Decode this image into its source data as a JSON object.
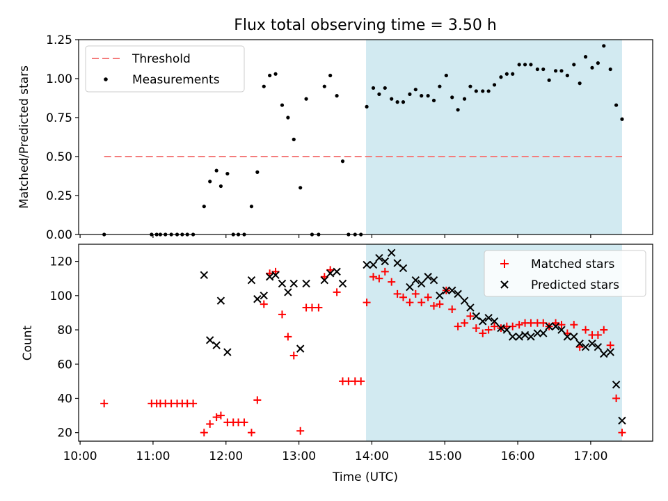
{
  "title": "Flux total observing time = 3.50 h",
  "colors": {
    "threshold": "#f47c7c",
    "measurement": "#000000",
    "matched": "#ff0000",
    "predicted": "#000000",
    "highlight": "#add8e6"
  },
  "chart_data": [
    {
      "type": "scatter",
      "ylabel": "Matched/Predicted stars",
      "xlim": [
        9.98,
        17.85
      ],
      "ylim": [
        0,
        1.25
      ],
      "yticks": [
        "0.00",
        "0.25",
        "0.50",
        "0.75",
        "1.00",
        "1.25"
      ],
      "highlight_span": [
        13.92,
        17.43
      ],
      "legend": {
        "placement": "upper-left",
        "entries": [
          {
            "label": "Threshold",
            "kind": "dashed-line"
          },
          {
            "label": "Measurements",
            "kind": "dot"
          }
        ]
      },
      "threshold": {
        "name": "Threshold",
        "y": 0.5,
        "x": [
          10.33,
          17.43
        ]
      },
      "series": [
        {
          "name": "Measurements",
          "points": [
            [
              10.33,
              0
            ],
            [
              10.98,
              0
            ],
            [
              11.05,
              0
            ],
            [
              11.1,
              0
            ],
            [
              11.17,
              0
            ],
            [
              11.25,
              0
            ],
            [
              11.33,
              0
            ],
            [
              11.4,
              0
            ],
            [
              11.47,
              0
            ],
            [
              11.55,
              0
            ],
            [
              11.7,
              0.18
            ],
            [
              11.78,
              0.34
            ],
            [
              11.87,
              0.41
            ],
            [
              11.93,
              0.31
            ],
            [
              12.02,
              0.39
            ],
            [
              12.1,
              0
            ],
            [
              12.17,
              0
            ],
            [
              12.25,
              0
            ],
            [
              12.35,
              0.18
            ],
            [
              12.43,
              0.4
            ],
            [
              12.52,
              0.95
            ],
            [
              12.6,
              1.02
            ],
            [
              12.68,
              1.03
            ],
            [
              12.77,
              0.83
            ],
            [
              12.85,
              0.75
            ],
            [
              12.93,
              0.61
            ],
            [
              13.02,
              0.3
            ],
            [
              13.1,
              0.87
            ],
            [
              13.18,
              0
            ],
            [
              13.27,
              0
            ],
            [
              13.35,
              0.95
            ],
            [
              13.43,
              1.02
            ],
            [
              13.52,
              0.89
            ],
            [
              13.6,
              0.47
            ],
            [
              13.68,
              0
            ],
            [
              13.77,
              0
            ],
            [
              13.85,
              0
            ],
            [
              13.93,
              0.82
            ],
            [
              14.02,
              0.94
            ],
            [
              14.1,
              0.9
            ],
            [
              14.18,
              0.94
            ],
            [
              14.27,
              0.87
            ],
            [
              14.35,
              0.85
            ],
            [
              14.43,
              0.85
            ],
            [
              14.52,
              0.9
            ],
            [
              14.6,
              0.93
            ],
            [
              14.68,
              0.89
            ],
            [
              14.77,
              0.89
            ],
            [
              14.85,
              0.86
            ],
            [
              14.93,
              0.95
            ],
            [
              15.02,
              1.02
            ],
            [
              15.1,
              0.88
            ],
            [
              15.18,
              0.8
            ],
            [
              15.27,
              0.87
            ],
            [
              15.35,
              0.95
            ],
            [
              15.43,
              0.92
            ],
            [
              15.52,
              0.92
            ],
            [
              15.6,
              0.92
            ],
            [
              15.68,
              0.96
            ],
            [
              15.77,
              1.01
            ],
            [
              15.85,
              1.03
            ],
            [
              15.93,
              1.03
            ],
            [
              16.02,
              1.09
            ],
            [
              16.1,
              1.09
            ],
            [
              16.18,
              1.09
            ],
            [
              16.27,
              1.06
            ],
            [
              16.35,
              1.06
            ],
            [
              16.43,
              0.99
            ],
            [
              16.52,
              1.05
            ],
            [
              16.6,
              1.05
            ],
            [
              16.68,
              1.02
            ],
            [
              16.77,
              1.09
            ],
            [
              16.85,
              0.97
            ],
            [
              16.93,
              1.14
            ],
            [
              17.02,
              1.07
            ],
            [
              17.1,
              1.1
            ],
            [
              17.18,
              1.21
            ],
            [
              17.27,
              1.06
            ],
            [
              17.35,
              0.83
            ],
            [
              17.43,
              0.74
            ]
          ]
        }
      ]
    },
    {
      "type": "scatter",
      "xlabel": "Time (UTC)",
      "ylabel": "Count",
      "xlim": [
        9.98,
        17.85
      ],
      "ylim": [
        15,
        130
      ],
      "xticks": [
        "10:00",
        "11:00",
        "12:00",
        "13:00",
        "14:00",
        "15:00",
        "16:00",
        "17:00"
      ],
      "yticks": [
        "20",
        "40",
        "60",
        "80",
        "100",
        "120"
      ],
      "highlight_span": [
        13.92,
        17.43
      ],
      "legend": {
        "placement": "upper-right",
        "entries": [
          {
            "label": "Matched stars",
            "kind": "plus"
          },
          {
            "label": "Predicted stars",
            "kind": "cross"
          }
        ]
      },
      "series": [
        {
          "name": "Matched stars",
          "points": [
            [
              10.33,
              37
            ],
            [
              10.98,
              37
            ],
            [
              11.05,
              37
            ],
            [
              11.1,
              37
            ],
            [
              11.17,
              37
            ],
            [
              11.25,
              37
            ],
            [
              11.33,
              37
            ],
            [
              11.4,
              37
            ],
            [
              11.47,
              37
            ],
            [
              11.55,
              37
            ],
            [
              11.7,
              20
            ],
            [
              11.78,
              25
            ],
            [
              11.87,
              29
            ],
            [
              11.93,
              30
            ],
            [
              12.02,
              26
            ],
            [
              12.1,
              26
            ],
            [
              12.17,
              26
            ],
            [
              12.25,
              26
            ],
            [
              12.35,
              20
            ],
            [
              12.43,
              39
            ],
            [
              12.52,
              95
            ],
            [
              12.6,
              113
            ],
            [
              12.68,
              114
            ],
            [
              12.77,
              89
            ],
            [
              12.85,
              76
            ],
            [
              12.93,
              65
            ],
            [
              13.02,
              21
            ],
            [
              13.1,
              93
            ],
            [
              13.18,
              93
            ],
            [
              13.27,
              93
            ],
            [
              13.35,
              111
            ],
            [
              13.43,
              115
            ],
            [
              13.52,
              102
            ],
            [
              13.6,
              50
            ],
            [
              13.68,
              50
            ],
            [
              13.77,
              50
            ],
            [
              13.85,
              50
            ],
            [
              13.93,
              96
            ],
            [
              14.02,
              111
            ],
            [
              14.1,
              110
            ],
            [
              14.18,
              114
            ],
            [
              14.27,
              108
            ],
            [
              14.35,
              101
            ],
            [
              14.43,
              99
            ],
            [
              14.52,
              96
            ],
            [
              14.6,
              101
            ],
            [
              14.68,
              96
            ],
            [
              14.77,
              99
            ],
            [
              14.85,
              94
            ],
            [
              14.93,
              95
            ],
            [
              15.02,
              103
            ],
            [
              15.1,
              92
            ],
            [
              15.18,
              82
            ],
            [
              15.27,
              84
            ],
            [
              15.35,
              88
            ],
            [
              15.43,
              81
            ],
            [
              15.52,
              78
            ],
            [
              15.6,
              80
            ],
            [
              15.68,
              82
            ],
            [
              15.77,
              81
            ],
            [
              15.85,
              82
            ],
            [
              15.93,
              82
            ],
            [
              16.02,
              83
            ],
            [
              16.1,
              84
            ],
            [
              16.18,
              84
            ],
            [
              16.27,
              84
            ],
            [
              16.35,
              84
            ],
            [
              16.43,
              82
            ],
            [
              16.52,
              84
            ],
            [
              16.6,
              83
            ],
            [
              16.68,
              78
            ],
            [
              16.77,
              83
            ],
            [
              16.85,
              70
            ],
            [
              16.93,
              80
            ],
            [
              17.02,
              77
            ],
            [
              17.1,
              77
            ],
            [
              17.18,
              80
            ],
            [
              17.27,
              71
            ],
            [
              17.35,
              40
            ],
            [
              17.43,
              20
            ]
          ]
        },
        {
          "name": "Predicted stars",
          "points": [
            [
              11.7,
              112
            ],
            [
              11.78,
              74
            ],
            [
              11.87,
              71
            ],
            [
              11.93,
              97
            ],
            [
              12.02,
              67
            ],
            [
              12.35,
              109
            ],
            [
              12.43,
              98
            ],
            [
              12.52,
              100
            ],
            [
              12.6,
              111
            ],
            [
              12.68,
              112
            ],
            [
              12.77,
              107
            ],
            [
              12.85,
              102
            ],
            [
              12.93,
              107
            ],
            [
              13.02,
              69
            ],
            [
              13.1,
              107
            ],
            [
              13.35,
              109
            ],
            [
              13.43,
              113
            ],
            [
              13.52,
              114
            ],
            [
              13.6,
              107
            ],
            [
              13.93,
              118
            ],
            [
              14.02,
              118
            ],
            [
              14.1,
              122
            ],
            [
              14.18,
              120
            ],
            [
              14.27,
              125
            ],
            [
              14.35,
              119
            ],
            [
              14.43,
              116
            ],
            [
              14.52,
              105
            ],
            [
              14.6,
              109
            ],
            [
              14.68,
              107
            ],
            [
              14.77,
              111
            ],
            [
              14.85,
              109
            ],
            [
              14.93,
              100
            ],
            [
              15.02,
              103
            ],
            [
              15.1,
              103
            ],
            [
              15.18,
              101
            ],
            [
              15.27,
              97
            ],
            [
              15.35,
              93
            ],
            [
              15.43,
              88
            ],
            [
              15.52,
              85
            ],
            [
              15.6,
              87
            ],
            [
              15.68,
              85
            ],
            [
              15.77,
              81
            ],
            [
              15.85,
              80
            ],
            [
              15.93,
              76
            ],
            [
              16.02,
              76
            ],
            [
              16.1,
              77
            ],
            [
              16.18,
              76
            ],
            [
              16.27,
              78
            ],
            [
              16.35,
              78
            ],
            [
              16.43,
              82
            ],
            [
              16.52,
              82
            ],
            [
              16.6,
              80
            ],
            [
              16.68,
              76
            ],
            [
              16.77,
              76
            ],
            [
              16.85,
              72
            ],
            [
              16.93,
              70
            ],
            [
              17.02,
              72
            ],
            [
              17.1,
              70
            ],
            [
              17.18,
              66
            ],
            [
              17.27,
              67
            ],
            [
              17.35,
              48
            ],
            [
              17.43,
              27
            ]
          ]
        }
      ]
    }
  ]
}
